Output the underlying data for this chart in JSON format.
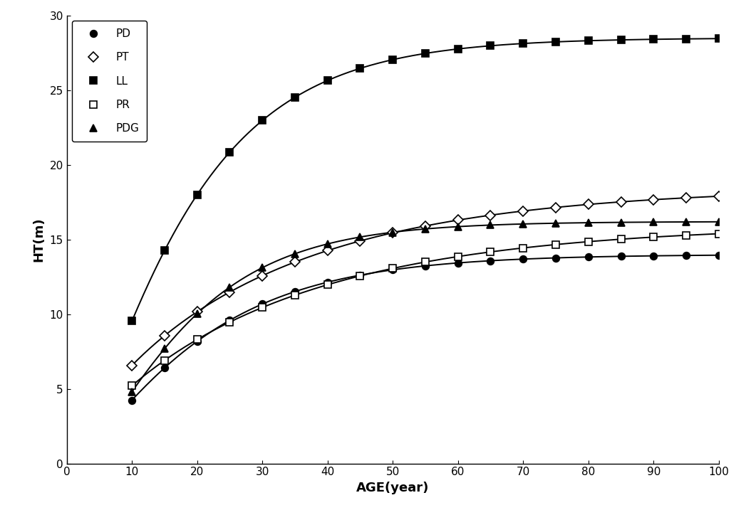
{
  "xlabel": "AGE(year)",
  "ylabel": "HT(m)",
  "xlim": [
    0,
    100
  ],
  "ylim": [
    0,
    30
  ],
  "xticks": [
    0,
    10,
    20,
    30,
    40,
    50,
    60,
    70,
    80,
    90,
    100
  ],
  "yticks": [
    0,
    5,
    10,
    15,
    20,
    25,
    30
  ],
  "species_order": [
    "PD",
    "PT",
    "LL",
    "PR",
    "PDG"
  ],
  "params": {
    "PD": {
      "a": 14.0,
      "b": 0.06,
      "c": 1.5
    },
    "PT": {
      "a": 18.5,
      "b": 0.032,
      "c": 0.8
    },
    "LL": {
      "a": 28.5,
      "b": 0.068,
      "c": 1.55
    },
    "PR": {
      "a": 16.0,
      "b": 0.031,
      "c": 0.85
    },
    "PDG": {
      "a": 16.2,
      "b": 0.075,
      "c": 1.9
    }
  },
  "marker_styles": {
    "PD": {
      "marker": "o",
      "filled": true
    },
    "PT": {
      "marker": "D",
      "filled": false
    },
    "LL": {
      "marker": "s",
      "filled": true
    },
    "PR": {
      "marker": "s",
      "filled": false
    },
    "PDG": {
      "marker": "^",
      "filled": true
    }
  },
  "marker_ages": [
    10,
    15,
    20,
    25,
    30,
    35,
    40,
    45,
    50,
    55,
    60,
    65,
    70,
    75,
    80,
    85,
    90,
    95,
    100
  ],
  "age_start": 10,
  "age_end": 100,
  "linewidth": 1.4,
  "markersize": 7,
  "legend_loc": "upper left",
  "legend_labelspacing": 1.2,
  "background_color": "#ffffff"
}
